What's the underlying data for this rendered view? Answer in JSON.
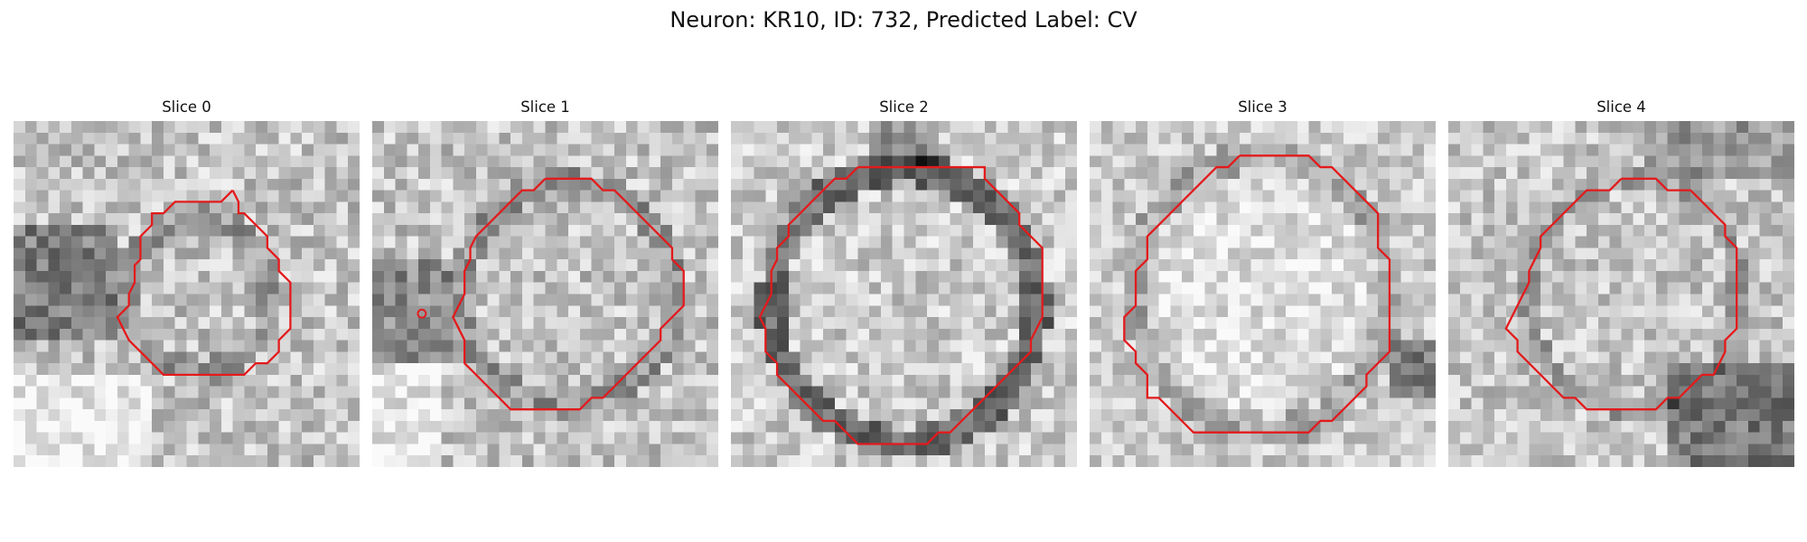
{
  "figure": {
    "title": "Neuron: KR10, ID: 732, Predicted Label: CV"
  },
  "contour_color": "#e31a1c",
  "panels": [
    {
      "title": "Slice 0"
    },
    {
      "title": "Slice 1"
    },
    {
      "title": "Slice 2"
    },
    {
      "title": "Slice 3"
    },
    {
      "title": "Slice 4"
    }
  ]
}
